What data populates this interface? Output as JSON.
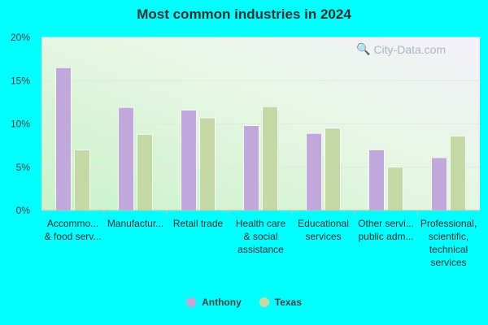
{
  "chart_data": {
    "type": "bar",
    "title": "Most common industries in 2024",
    "categories": [
      [
        "Accommo...",
        "& food serv..."
      ],
      [
        "Manufactur..."
      ],
      [
        "Retail trade"
      ],
      [
        "Health care",
        "& social",
        "assistance"
      ],
      [
        "Educational",
        "services"
      ],
      [
        "Other servi...",
        "public adm..."
      ],
      [
        "Professional,",
        "scientific,",
        "technical",
        "services"
      ]
    ],
    "series": [
      {
        "name": "Anthony",
        "values": [
          16.5,
          11.9,
          11.6,
          9.8,
          8.9,
          7.0,
          6.1
        ],
        "color": "#c0a8da"
      },
      {
        "name": "Texas",
        "values": [
          7.0,
          8.8,
          10.7,
          12.0,
          9.5,
          5.0,
          8.6
        ],
        "color": "#c4d9a6"
      }
    ],
    "y_ticks": [
      "0%",
      "5%",
      "10%",
      "15%",
      "20%"
    ],
    "ylim": [
      0,
      20
    ],
    "legend_position": "bottom"
  },
  "watermark": "City-Data.com"
}
